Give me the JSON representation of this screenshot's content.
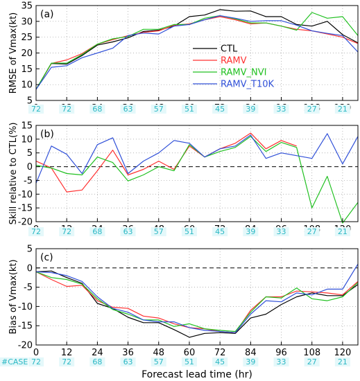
{
  "xlabel": "Forecast lead time (hr)",
  "case_row_label": "#CASE",
  "case_ticks": [
    0,
    12,
    24,
    36,
    48,
    60,
    72,
    84,
    96,
    108,
    120
  ],
  "case_counts": [
    "72",
    "72",
    "68",
    "63",
    "57",
    "51",
    "45",
    "39",
    "33",
    "27",
    "21"
  ],
  "colors": {
    "CTL": "#000000",
    "RAMV": "#ff3030",
    "RAMV_NVI": "#20c020",
    "RAMV_T10K": "#3050d8",
    "case": "#2bb8c4"
  },
  "legend": [
    "CTL",
    "RAMV",
    "RAMV_NVI",
    "RAMV_T10K"
  ],
  "chart_data": [
    {
      "type": "line",
      "panel_label": "(a)",
      "ylabel": "RMSE of Vmax(kt)",
      "xlim": [
        0,
        126
      ],
      "ylim": [
        5,
        35
      ],
      "yticks": [
        5,
        10,
        15,
        20,
        25,
        30,
        35
      ],
      "xticks": [
        0,
        12,
        24,
        36,
        48,
        60,
        72,
        84,
        96,
        108,
        120
      ],
      "x": [
        0,
        6,
        12,
        18,
        24,
        30,
        36,
        42,
        48,
        54,
        60,
        66,
        72,
        78,
        84,
        90,
        96,
        102,
        108,
        114,
        120,
        126
      ],
      "series": [
        {
          "name": "CTL",
          "values": [
            8.5,
            16.7,
            16.5,
            19.2,
            22.5,
            23.5,
            24.8,
            26.8,
            27.2,
            28.5,
            31.5,
            32.0,
            33.7,
            33.2,
            33.3,
            31.5,
            31.5,
            29.0,
            28.5,
            30.0,
            25.8,
            23.2
          ]
        },
        {
          "name": "RAMV",
          "values": [
            8.5,
            16.7,
            17.8,
            19.8,
            22.8,
            24.2,
            25.5,
            26.5,
            27.0,
            28.8,
            29.2,
            30.5,
            31.5,
            30.5,
            29.2,
            29.5,
            28.5,
            27.5,
            27.0,
            26.0,
            25.0,
            23.0
          ]
        },
        {
          "name": "RAMV_NVI",
          "values": [
            8.5,
            16.8,
            16.8,
            19.5,
            22.8,
            24.5,
            25.2,
            27.5,
            27.5,
            29.0,
            29.0,
            31.0,
            31.8,
            30.8,
            29.5,
            29.5,
            28.5,
            27.2,
            32.8,
            31.0,
            31.5,
            25.5
          ]
        },
        {
          "name": "RAMV_T10K",
          "values": [
            8.5,
            15.5,
            16.0,
            18.5,
            20.0,
            21.5,
            25.5,
            26.3,
            26.0,
            28.5,
            29.0,
            30.5,
            31.8,
            31.0,
            30.0,
            30.2,
            30.2,
            28.8,
            27.0,
            26.2,
            25.5,
            20.3
          ]
        }
      ]
    },
    {
      "type": "line",
      "panel_label": "(b)",
      "ylabel": "Skill relative to CTL(%)",
      "xlim": [
        0,
        126
      ],
      "ylim": [
        -20,
        15
      ],
      "yticks": [
        -20,
        -15,
        -10,
        -5,
        0,
        5,
        10,
        15
      ],
      "xticks": [
        0,
        12,
        24,
        36,
        48,
        60,
        72,
        84,
        96,
        108,
        120
      ],
      "x": [
        0,
        6,
        12,
        18,
        24,
        30,
        36,
        42,
        48,
        54,
        60,
        66,
        72,
        78,
        84,
        90,
        96,
        102,
        108,
        114,
        120,
        126
      ],
      "series": [
        {
          "name": "RAMV",
          "values": [
            2.0,
            -0.5,
            -9.2,
            -8.5,
            -1.5,
            6.0,
            -3.0,
            -1.0,
            2.0,
            -1.0,
            7.5,
            3.5,
            6.5,
            8.5,
            12.2,
            6.5,
            9.5,
            7.5,
            null,
            null,
            null,
            null
          ]
        },
        {
          "name": "RAMV_NVI",
          "values": [
            0.5,
            -0.5,
            -2.5,
            -3.0,
            3.5,
            1.5,
            -5.2,
            -3.0,
            0.0,
            -1.5,
            8.0,
            3.5,
            5.5,
            7.0,
            11.0,
            5.5,
            8.8,
            7.0,
            -15.0,
            -3.5,
            -20.5,
            -13.0
          ]
        },
        {
          "name": "RAMV_T10K",
          "values": [
            -6.0,
            7.5,
            4.5,
            -2.5,
            8.0,
            10.5,
            -2.5,
            2.0,
            5.0,
            9.5,
            8.5,
            3.5,
            6.5,
            7.5,
            11.5,
            3.0,
            5.0,
            4.0,
            3.0,
            12.0,
            1.0,
            11.0
          ]
        }
      ]
    },
    {
      "type": "line",
      "panel_label": "(c)",
      "ylabel": "Bias of Vmax(kt)",
      "xlim": [
        0,
        126
      ],
      "ylim": [
        -20,
        5
      ],
      "yticks": [
        -20,
        -15,
        -10,
        -5,
        0,
        5
      ],
      "xticks": [
        0,
        12,
        24,
        36,
        48,
        60,
        72,
        84,
        96,
        108,
        120
      ],
      "x": [
        0,
        6,
        12,
        18,
        24,
        30,
        36,
        42,
        48,
        54,
        60,
        66,
        72,
        78,
        84,
        90,
        96,
        102,
        108,
        114,
        120,
        126
      ],
      "series": [
        {
          "name": "CTL",
          "values": [
            -1.0,
            -0.8,
            -2.5,
            -4.0,
            -9.2,
            -10.5,
            -12.8,
            -14.2,
            -14.2,
            -16.0,
            -18.0,
            -17.0,
            -16.8,
            -17.0,
            -13.0,
            -12.0,
            -9.5,
            -7.5,
            -6.5,
            -7.2,
            -7.2,
            -4.3
          ]
        },
        {
          "name": "RAMV",
          "values": [
            -1.0,
            -3.0,
            -4.8,
            -4.5,
            -8.5,
            -10.2,
            -10.5,
            -12.5,
            -13.0,
            -14.5,
            -15.5,
            -15.8,
            -16.5,
            -16.8,
            -11.0,
            -7.5,
            -7.5,
            -6.0,
            -6.2,
            -6.5,
            -7.0,
            -3.5
          ]
        },
        {
          "name": "RAMV_NVI",
          "values": [
            -1.0,
            -2.5,
            -3.0,
            -4.2,
            -8.0,
            -10.8,
            -12.0,
            -13.5,
            -13.5,
            -15.2,
            -14.5,
            -15.8,
            -16.2,
            -16.5,
            -11.5,
            -7.5,
            -7.8,
            -5.2,
            -8.0,
            -8.5,
            -7.5,
            -3.8
          ]
        },
        {
          "name": "RAMV_T10K",
          "values": [
            -1.0,
            -1.2,
            -2.0,
            -3.5,
            -7.5,
            -10.5,
            -11.5,
            -13.5,
            -14.0,
            -14.0,
            -15.5,
            -16.2,
            -16.5,
            -16.8,
            -12.0,
            -8.5,
            -8.8,
            -6.5,
            -7.0,
            -5.5,
            -5.5,
            1.0
          ]
        }
      ]
    }
  ]
}
